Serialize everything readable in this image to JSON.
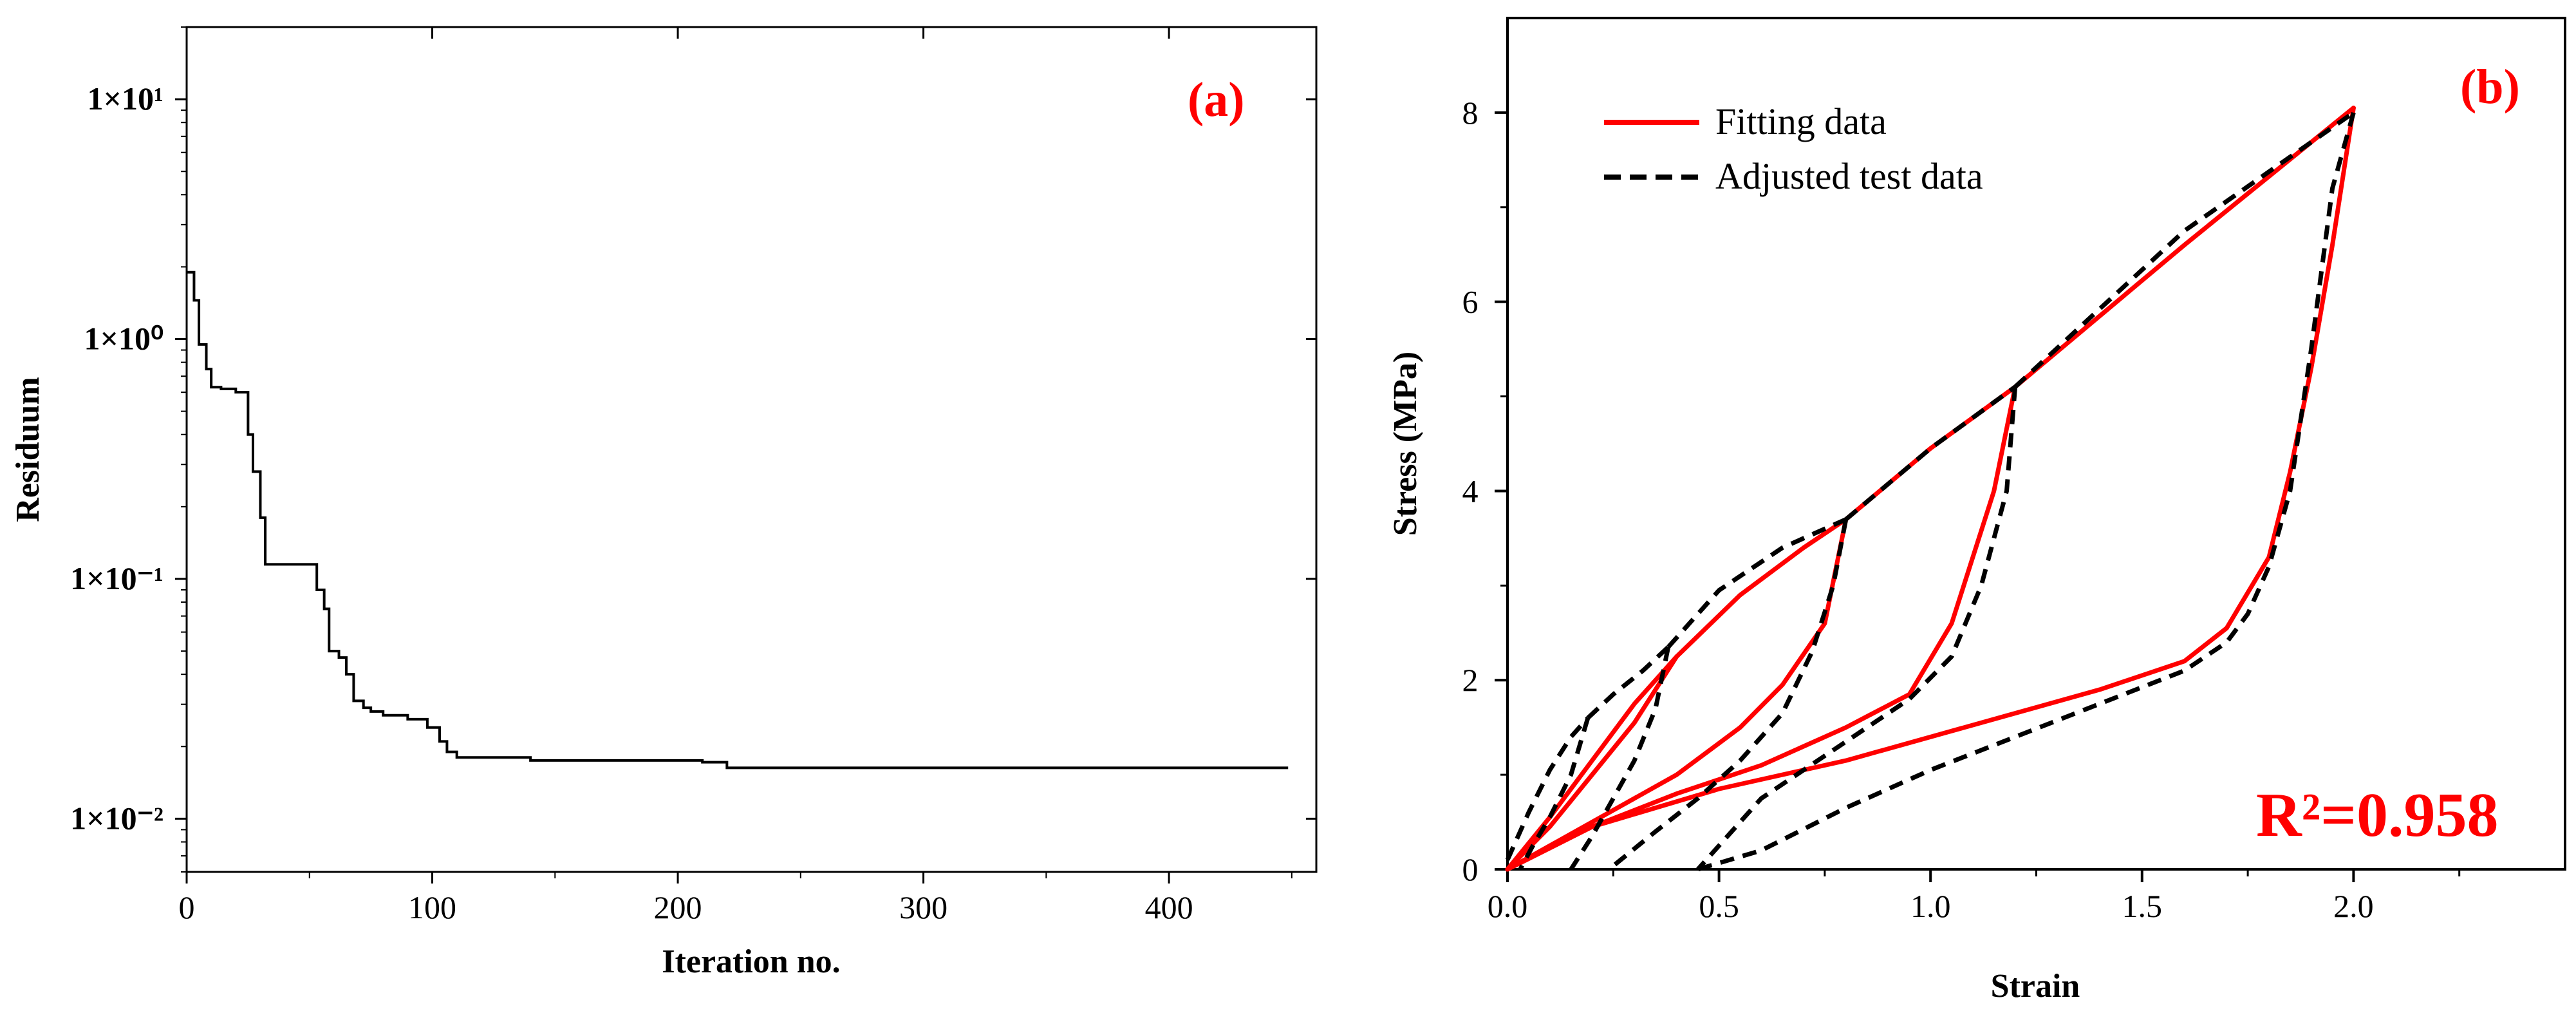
{
  "chart_data": [
    {
      "panel": "(a)",
      "type": "line",
      "title": "",
      "xlabel": "Iteration no.",
      "ylabel": "Residuum",
      "yscale": "log",
      "xlim": [
        0,
        460
      ],
      "ylim": [
        0.006,
        20
      ],
      "xticks": [
        0,
        100,
        200,
        300,
        400
      ],
      "xtick_labels": [
        "0",
        "100",
        "200",
        "300",
        "400"
      ],
      "yticks": [
        10,
        1,
        0.1,
        0.01
      ],
      "ytick_labels": [
        "1×10¹",
        "1×10⁰",
        "1×10⁻¹",
        "1×10⁻²"
      ],
      "series": [
        {
          "name": "Residuum",
          "color": "#000000",
          "x": [
            0,
            3,
            5,
            8,
            10,
            14,
            20,
            25,
            27,
            30,
            32,
            50,
            53,
            56,
            58,
            62,
            65,
            68,
            72,
            75,
            80,
            90,
            98,
            103,
            106,
            110,
            140,
            210,
            220,
            400,
            448
          ],
          "y": [
            1.9,
            1.45,
            0.95,
            0.75,
            0.63,
            0.62,
            0.6,
            0.4,
            0.28,
            0.18,
            0.115,
            0.115,
            0.09,
            0.075,
            0.05,
            0.047,
            0.04,
            0.031,
            0.029,
            0.028,
            0.027,
            0.026,
            0.024,
            0.021,
            0.019,
            0.018,
            0.0175,
            0.0172,
            0.0163,
            0.0163,
            0.0161
          ]
        }
      ]
    },
    {
      "panel": "(b)",
      "type": "line",
      "title": "",
      "xlabel": "Strain",
      "ylabel": "Stress (MPa)",
      "xlim": [
        0,
        2.5
      ],
      "ylim": [
        0,
        9
      ],
      "xticks": [
        0,
        0.5,
        1.0,
        1.5,
        2.0
      ],
      "xtick_labels": [
        "0.0",
        "0.5",
        "1.0",
        "1.5",
        "2.0"
      ],
      "yticks": [
        0,
        2,
        4,
        6,
        8
      ],
      "ytick_labels": [
        "0",
        "2",
        "4",
        "6",
        "8"
      ],
      "annotation": "R²=0.958",
      "legend": [
        "Fitting data",
        "Adjusted test data"
      ],
      "legend_position": "top-left",
      "series": [
        {
          "name": "Fitting data",
          "color": "#ff0000",
          "style": "solid",
          "segments": [
            {
              "x": [
                0,
                0.1,
                0.2,
                0.3,
                0.4
              ],
              "y": [
                0,
                0.55,
                1.15,
                1.75,
                2.25
              ]
            },
            {
              "x": [
                0.4,
                0.3,
                0.2,
                0.1,
                0
              ],
              "y": [
                2.25,
                1.55,
                1.0,
                0.45,
                0
              ]
            },
            {
              "x": [
                0.4,
                0.55,
                0.7,
                0.8
              ],
              "y": [
                2.25,
                2.9,
                3.4,
                3.7
              ]
            },
            {
              "x": [
                0.8,
                0.75,
                0.65,
                0.55,
                0.4,
                0.2,
                0
              ],
              "y": [
                3.7,
                2.6,
                1.95,
                1.5,
                1.0,
                0.5,
                0
              ]
            },
            {
              "x": [
                0.8,
                1.0,
                1.2
              ],
              "y": [
                3.7,
                4.45,
                5.1
              ]
            },
            {
              "x": [
                1.2,
                1.15,
                1.05,
                0.95,
                0.8,
                0.6,
                0.4,
                0.2,
                0
              ],
              "y": [
                5.1,
                4.0,
                2.6,
                1.85,
                1.5,
                1.1,
                0.8,
                0.45,
                0
              ]
            },
            {
              "x": [
                1.2,
                1.6,
                2.0
              ],
              "y": [
                5.1,
                6.6,
                8.05
              ]
            },
            {
              "x": [
                2.0,
                1.95,
                1.9,
                1.85,
                1.8,
                1.7,
                1.6,
                1.4,
                1.2,
                1.0,
                0.8,
                0.5,
                0.2,
                0
              ],
              "y": [
                8.05,
                6.6,
                5.3,
                4.2,
                3.3,
                2.55,
                2.2,
                1.9,
                1.65,
                1.4,
                1.15,
                0.85,
                0.45,
                0
              ]
            }
          ]
        },
        {
          "name": "Adjusted test data",
          "color": "#000000",
          "style": "dashed",
          "segments": [
            {
              "x": [
                0,
                0.05,
                0.1,
                0.15,
                0.19
              ],
              "y": [
                0.1,
                0.6,
                1.05,
                1.4,
                1.6
              ]
            },
            {
              "x": [
                0.19,
                0.15,
                0.1,
                0.06,
                0.03
              ],
              "y": [
                1.6,
                1.0,
                0.55,
                0.25,
                0
              ]
            },
            {
              "x": [
                0.19,
                0.25,
                0.32,
                0.38
              ],
              "y": [
                1.6,
                1.85,
                2.1,
                2.35
              ]
            },
            {
              "x": [
                0.38,
                0.35,
                0.3,
                0.25,
                0.2,
                0.15
              ],
              "y": [
                2.35,
                1.7,
                1.15,
                0.75,
                0.35,
                0
              ]
            },
            {
              "x": [
                0.38,
                0.5,
                0.65,
                0.8
              ],
              "y": [
                2.35,
                2.95,
                3.4,
                3.7
              ]
            },
            {
              "x": [
                0.8,
                0.77,
                0.72,
                0.65,
                0.55,
                0.45,
                0.35,
                0.24
              ],
              "y": [
                3.7,
                3.0,
                2.3,
                1.65,
                1.15,
                0.75,
                0.4,
                0
              ]
            },
            {
              "x": [
                0.8,
                1.0,
                1.2
              ],
              "y": [
                3.7,
                4.45,
                5.1
              ]
            },
            {
              "x": [
                1.2,
                1.18,
                1.12,
                1.05,
                0.95,
                0.8,
                0.6,
                0.45
              ],
              "y": [
                5.1,
                4.0,
                3.0,
                2.25,
                1.8,
                1.35,
                0.75,
                0
              ]
            },
            {
              "x": [
                1.2,
                1.6,
                2.0
              ],
              "y": [
                5.1,
                6.75,
                8.0
              ]
            },
            {
              "x": [
                2.0,
                1.95,
                1.9,
                1.85,
                1.8,
                1.75,
                1.7,
                1.6,
                1.4,
                1.2,
                1.0,
                0.8,
                0.6,
                0.45
              ],
              "y": [
                8.0,
                7.2,
                5.5,
                4.0,
                3.2,
                2.7,
                2.4,
                2.1,
                1.75,
                1.4,
                1.05,
                0.65,
                0.2,
                0
              ]
            }
          ]
        }
      ]
    }
  ]
}
